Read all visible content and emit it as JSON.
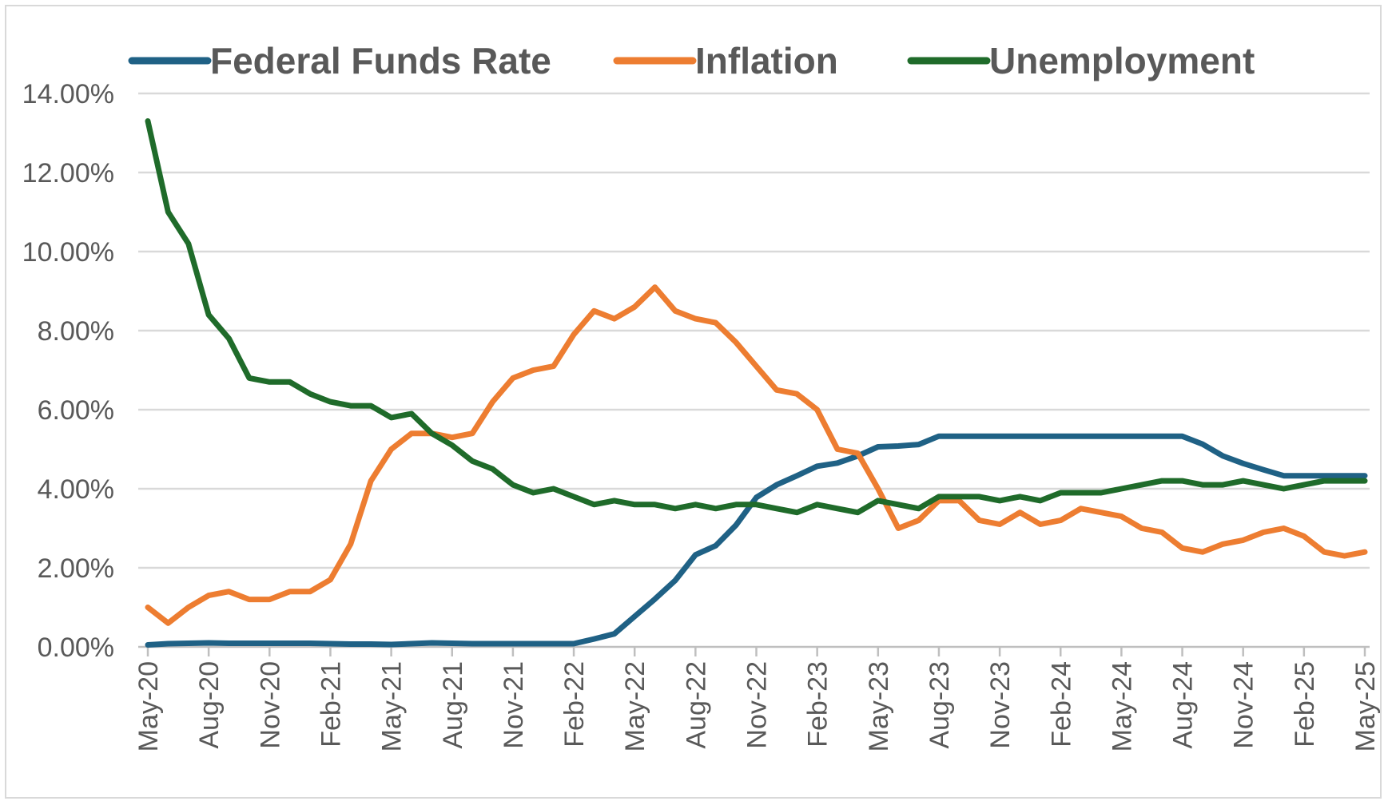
{
  "chart_data": {
    "type": "line",
    "title": "",
    "xlabel": "",
    "ylabel": "",
    "ylim": [
      0,
      14
    ],
    "y_format": "percent_2dp",
    "y_ticks": [
      "0.00%",
      "2.00%",
      "4.00%",
      "6.00%",
      "8.00%",
      "10.00%",
      "12.00%",
      "14.00%"
    ],
    "x_tick_labels": [
      "May-20",
      "Aug-20",
      "Nov-20",
      "Feb-21",
      "May-21",
      "Aug-21",
      "Nov-21",
      "Feb-22",
      "May-22",
      "Aug-22",
      "Nov-22",
      "Feb-23",
      "May-23",
      "Aug-23",
      "Nov-23",
      "Feb-24",
      "May-24",
      "Aug-24",
      "Nov-24",
      "Feb-25",
      "May-25"
    ],
    "x": [
      "May-20",
      "Jun-20",
      "Jul-20",
      "Aug-20",
      "Sep-20",
      "Oct-20",
      "Nov-20",
      "Dec-20",
      "Jan-21",
      "Feb-21",
      "Mar-21",
      "Apr-21",
      "May-21",
      "Jun-21",
      "Jul-21",
      "Aug-21",
      "Sep-21",
      "Oct-21",
      "Nov-21",
      "Dec-21",
      "Jan-22",
      "Feb-22",
      "Mar-22",
      "Apr-22",
      "May-22",
      "Jun-22",
      "Jul-22",
      "Aug-22",
      "Sep-22",
      "Oct-22",
      "Nov-22",
      "Dec-22",
      "Jan-23",
      "Feb-23",
      "Mar-23",
      "Apr-23",
      "May-23",
      "Jun-23",
      "Jul-23",
      "Aug-23",
      "Sep-23",
      "Oct-23",
      "Nov-23",
      "Dec-23",
      "Jan-24",
      "Feb-24",
      "Mar-24",
      "Apr-24",
      "May-24",
      "Jun-24",
      "Jul-24",
      "Aug-24",
      "Sep-24",
      "Oct-24",
      "Nov-24",
      "Dec-24",
      "Jan-25",
      "Feb-25",
      "Mar-25",
      "Apr-25",
      "May-25"
    ],
    "grid": true,
    "legend_position": "top",
    "series": [
      {
        "name": "Federal Funds Rate",
        "color": "#1f6185",
        "values": [
          0.05,
          0.08,
          0.09,
          0.1,
          0.09,
          0.09,
          0.09,
          0.09,
          0.09,
          0.08,
          0.07,
          0.07,
          0.06,
          0.08,
          0.1,
          0.09,
          0.08,
          0.08,
          0.08,
          0.08,
          0.08,
          0.08,
          0.2,
          0.33,
          0.77,
          1.21,
          1.68,
          2.33,
          2.56,
          3.08,
          3.78,
          4.1,
          4.33,
          4.57,
          4.65,
          4.83,
          5.06,
          5.08,
          5.12,
          5.33,
          5.33,
          5.33,
          5.33,
          5.33,
          5.33,
          5.33,
          5.33,
          5.33,
          5.33,
          5.33,
          5.33,
          5.33,
          5.13,
          4.83,
          4.64,
          4.48,
          4.33,
          4.33,
          4.33,
          4.33,
          4.33
        ]
      },
      {
        "name": "Inflation",
        "color": "#ed7d31",
        "values": [
          1.0,
          0.6,
          1.0,
          1.3,
          1.4,
          1.2,
          1.2,
          1.4,
          1.4,
          1.7,
          2.6,
          4.2,
          5.0,
          5.4,
          5.4,
          5.3,
          5.4,
          6.2,
          6.8,
          7.0,
          7.1,
          7.9,
          8.5,
          8.3,
          8.6,
          9.1,
          8.5,
          8.3,
          8.2,
          7.7,
          7.1,
          6.5,
          6.4,
          6.0,
          5.0,
          4.9,
          4.0,
          3.0,
          3.2,
          3.7,
          3.7,
          3.2,
          3.1,
          3.4,
          3.1,
          3.2,
          3.5,
          3.4,
          3.3,
          3.0,
          2.9,
          2.5,
          2.4,
          2.6,
          2.7,
          2.9,
          3.0,
          2.8,
          2.4,
          2.3,
          2.4
        ]
      },
      {
        "name": "Unemployment",
        "color": "#1f6b2a",
        "values": [
          13.3,
          11.0,
          10.2,
          8.4,
          7.8,
          6.8,
          6.7,
          6.7,
          6.4,
          6.2,
          6.1,
          6.1,
          5.8,
          5.9,
          5.4,
          5.1,
          4.7,
          4.5,
          4.1,
          3.9,
          4.0,
          3.8,
          3.6,
          3.7,
          3.6,
          3.6,
          3.5,
          3.6,
          3.5,
          3.6,
          3.6,
          3.5,
          3.4,
          3.6,
          3.5,
          3.4,
          3.7,
          3.6,
          3.5,
          3.8,
          3.8,
          3.8,
          3.7,
          3.8,
          3.7,
          3.9,
          3.9,
          3.9,
          4.0,
          4.1,
          4.2,
          4.2,
          4.1,
          4.1,
          4.2,
          4.1,
          4.0,
          4.1,
          4.2,
          4.2,
          4.2
        ]
      }
    ]
  }
}
